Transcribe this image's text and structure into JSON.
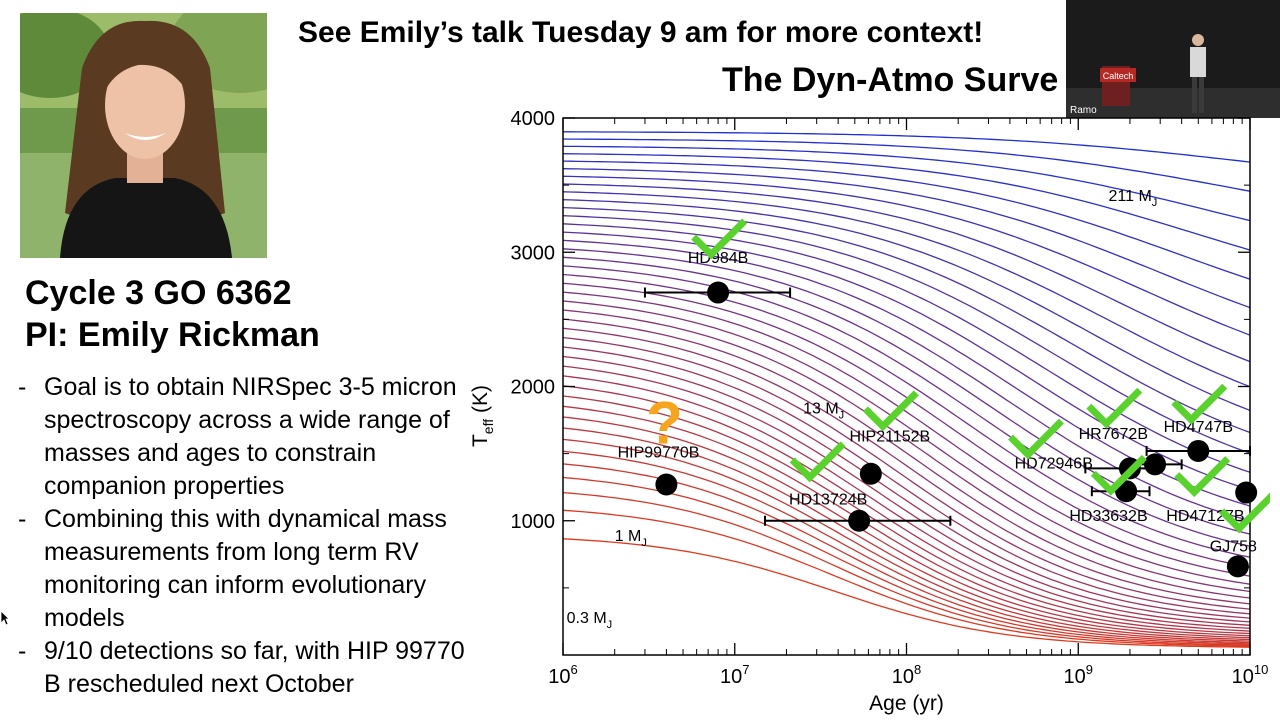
{
  "banner": "See Emily’s talk Tuesday 9 am for more context!",
  "survey_title": "The Dyn-Atmo Surve",
  "program": {
    "line1": "Cycle 3 GO 6362",
    "line2": "PI: Emily Rickman"
  },
  "bullets": [
    "Goal is to obtain NIRSpec 3-5 micron spectroscopy across a wide range of masses and ages to constrain companion properties",
    "Combining this with dynamical mass measurements from long term RV monitoring can inform evolutionary models",
    "9/10 detections so far, with HIP 99770 B rescheduled next October"
  ],
  "webcam": {
    "label": "Ramo",
    "sign": "Caltech"
  },
  "colors": {
    "high_mass_track": "#1f2fd6",
    "low_mass_track": "#e03a1e",
    "check": "#5ad22e",
    "question": "#f7a51c"
  },
  "chart_data": {
    "type": "line",
    "xlabel": "Age (yr)",
    "ylabel": "Teff (K)",
    "ylabel_main": "T",
    "ylabel_sub": "eff",
    "ylabel_unit": "(K)",
    "xscale": "log",
    "xlim": [
      1000000,
      10000000000
    ],
    "ylim": [
      0,
      4000
    ],
    "x_ticks": [
      {
        "value": 1000000,
        "base": "10",
        "exp": "6"
      },
      {
        "value": 10000000,
        "base": "10",
        "exp": "7"
      },
      {
        "value": 100000000,
        "base": "10",
        "exp": "8"
      },
      {
        "value": 1000000000,
        "base": "10",
        "exp": "9"
      },
      {
        "value": 10000000000,
        "base": "10",
        "exp": "10"
      }
    ],
    "y_ticks": [
      {
        "value": 1000,
        "label": "1000"
      },
      {
        "value": 2000,
        "label": "2000"
      },
      {
        "value": 3000,
        "label": "3000"
      },
      {
        "value": 4000,
        "label": "4000"
      }
    ],
    "track_labels": [
      {
        "main": "211 M",
        "sub": "J",
        "x": 1500000000,
        "y": 3380
      },
      {
        "main": "13 M",
        "sub": "J",
        "x": 25000000,
        "y": 1800
      },
      {
        "main": "1 M",
        "sub": "J",
        "x": 2000000,
        "y": 850
      },
      {
        "main": "0.3 M",
        "sub": "J",
        "x": 1050000,
        "y": 240
      }
    ],
    "companions": [
      {
        "name": "HD984B",
        "age": 8000000,
        "teff": 2700,
        "age_err": [
          3000000,
          21000000
        ],
        "detected": true,
        "label_x": 8000000,
        "label_y": 2920,
        "check_x": 8000000,
        "check_y": 3080
      },
      {
        "name": "HIP99770B",
        "age": 4000000,
        "teff": 1270,
        "age_err": null,
        "detected": false,
        "label_x": 3600000,
        "label_y": 1470,
        "check_x": 3900000,
        "check_y": 1740
      },
      {
        "name": "HIP21152B",
        "age": 62000000,
        "teff": 1350,
        "age_err": null,
        "detected": true,
        "label_x": 80000000,
        "label_y": 1590,
        "check_x": 80000000,
        "check_y": 1800
      },
      {
        "name": "HD13724B",
        "age": 53000000,
        "teff": 1000,
        "age_err": [
          15000000,
          180000000
        ],
        "detected": true,
        "label_x": 35000000,
        "label_y": 1120,
        "check_x": 30000000,
        "check_y": 1420
      },
      {
        "name": "HD72946B",
        "age": 2000000000,
        "teff": 1390,
        "age_err": [
          1100000000,
          2800000000
        ],
        "detected": true,
        "label_x": 720000000,
        "label_y": 1390,
        "check_x": 560000000,
        "check_y": 1590
      },
      {
        "name": "HR7672B",
        "age": 2800000000,
        "teff": 1420,
        "age_err": [
          2000000000,
          4000000000
        ],
        "detected": true,
        "label_x": 1600000000,
        "label_y": 1610,
        "check_x": 1600000000,
        "check_y": 1820
      },
      {
        "name": "HD4747B",
        "age": 5000000000,
        "teff": 1520,
        "age_err": [
          2500000000,
          10000000000
        ],
        "detected": true,
        "label_x": 5000000000,
        "label_y": 1660,
        "check_x": 5000000000,
        "check_y": 1850
      },
      {
        "name": "HD33632B",
        "age": 1900000000,
        "teff": 1220,
        "age_err": [
          1200000000,
          2600000000
        ],
        "detected": true,
        "label_x": 1500000000,
        "label_y": 1000,
        "check_x": 1700000000,
        "check_y": 1320
      },
      {
        "name": "HD47127B",
        "age": 9500000000,
        "teff": 1210,
        "age_err": [
          8500000000,
          10000000000
        ],
        "detected": true,
        "label_x": 5500000000,
        "label_y": 1000,
        "check_x": 5200000000,
        "check_y": 1310
      },
      {
        "name": "GJ758",
        "age": 8500000000,
        "teff": 660,
        "age_err": null,
        "detected": true,
        "label_x": 8000000000,
        "label_y": 770,
        "check_x": 9500000000,
        "check_y": 1040
      }
    ]
  }
}
